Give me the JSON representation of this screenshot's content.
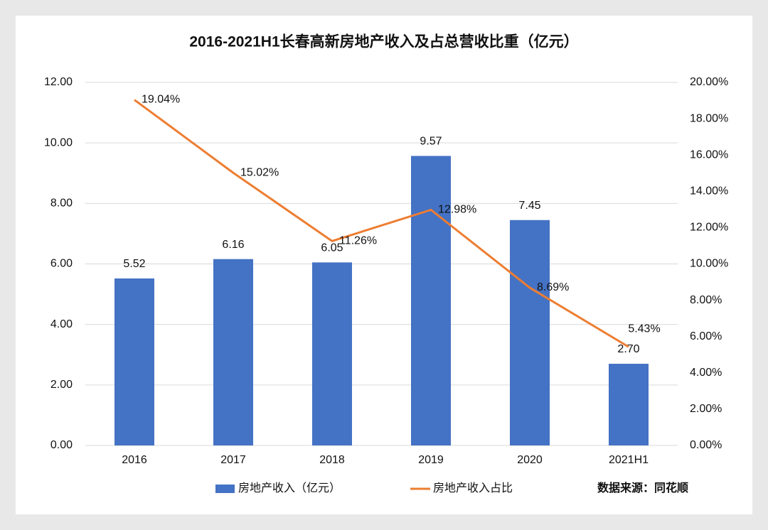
{
  "chart_data": {
    "type": "bar",
    "title": "2016-2021H1长春高新房地产收入及占总营收比重（亿元）",
    "categories": [
      "2016",
      "2017",
      "2018",
      "2019",
      "2020",
      "2021H1"
    ],
    "series": [
      {
        "name": "房地产收入（亿元）",
        "color": "#4472c4",
        "values": [
          5.52,
          6.16,
          6.05,
          9.57,
          7.45,
          2.7
        ],
        "value_labels": [
          "5.52",
          "6.16",
          "6.05",
          "9.57",
          "7.45",
          "2.70"
        ]
      },
      {
        "name": "房地产收入占比",
        "type": "line",
        "axis": "y2",
        "color": "#ed7d31",
        "values": [
          19.04,
          15.02,
          11.26,
          12.98,
          8.69,
          5.43
        ],
        "value_labels": [
          "19.04%",
          "15.02%",
          "11.26%",
          "12.98%",
          "8.69%",
          "5.43%"
        ]
      }
    ],
    "ylim": [
      0,
      12
    ],
    "yticks": [
      {
        "value": 0,
        "label": "0.00"
      },
      {
        "value": 2,
        "label": "2.00"
      },
      {
        "value": 4,
        "label": "4.00"
      },
      {
        "value": 6,
        "label": "6.00"
      },
      {
        "value": 8,
        "label": "8.00"
      },
      {
        "value": 10,
        "label": "10.00"
      },
      {
        "value": 12,
        "label": "12.00"
      }
    ],
    "y2lim": [
      0,
      20
    ],
    "y2ticks": [
      {
        "value": 0,
        "label": "0.00%"
      },
      {
        "value": 2,
        "label": "2.00%"
      },
      {
        "value": 4,
        "label": "4.00%"
      },
      {
        "value": 6,
        "label": "6.00%"
      },
      {
        "value": 8,
        "label": "8.00%"
      },
      {
        "value": 10,
        "label": "10.00%"
      },
      {
        "value": 12,
        "label": "12.00%"
      },
      {
        "value": 14,
        "label": "14.00%"
      },
      {
        "value": 16,
        "label": "16.00%"
      },
      {
        "value": 18,
        "label": "18.00%"
      },
      {
        "value": 20,
        "label": "20.00%"
      }
    ],
    "grid": true,
    "legend": "bottom",
    "source": "数据来源：同花顺"
  }
}
